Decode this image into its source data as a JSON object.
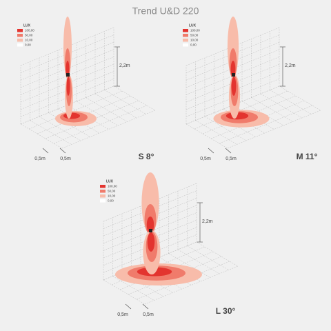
{
  "title": "Trend U&D 220",
  "panels": [
    {
      "legend": {
        "title": "LUX",
        "entries": [
          "100,00",
          "50,00",
          "10,00",
          "0,00"
        ]
      },
      "height": "2,2m",
      "spacing": [
        "0,5m",
        "0,5m"
      ],
      "label": "S 8°"
    },
    {
      "legend": {
        "title": "LUX",
        "entries": [
          "100,00",
          "50,00",
          "10,00",
          "0,00"
        ]
      },
      "height": "2,2m",
      "spacing": [
        "0,5m",
        "0,5m"
      ],
      "label": "M 11°"
    },
    {
      "legend": {
        "title": "LUX",
        "entries": [
          "100,00",
          "50,00",
          "10,00",
          "0,00"
        ]
      },
      "height": "2,2m",
      "spacing": [
        "0,5m",
        "0,5m"
      ],
      "label": "L 30°"
    }
  ]
}
